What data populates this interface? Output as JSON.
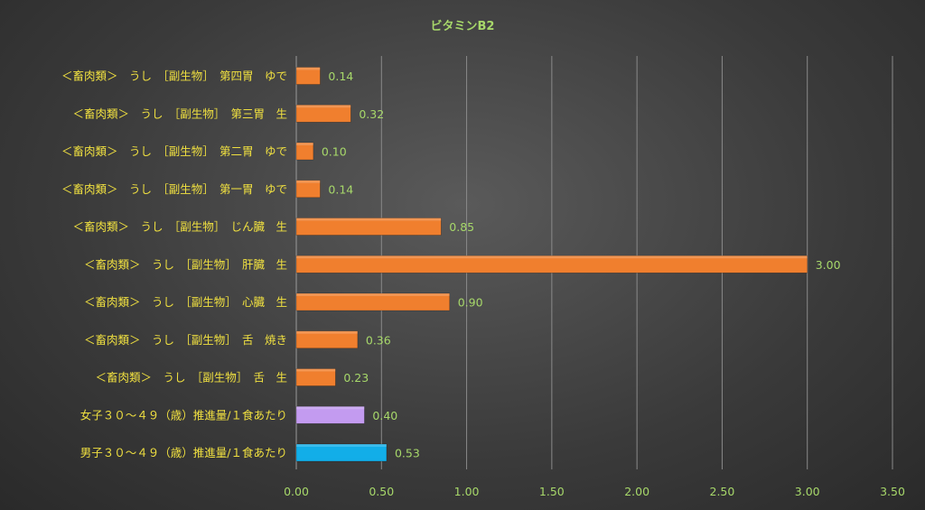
{
  "chart_data": {
    "type": "bar",
    "orientation": "horizontal",
    "title": "ビタミンB2",
    "categories": [
      "＜畜肉類＞　うし　［副生物］　第四胃　ゆで",
      "＜畜肉類＞　うし　［副生物］　第三胃　生",
      "＜畜肉類＞　うし　［副生物］　第二胃　ゆで",
      "＜畜肉類＞　うし　［副生物］　第一胃　ゆで",
      "＜畜肉類＞　うし　［副生物］　じん臓　生",
      "＜畜肉類＞　うし　［副生物］　肝臓　生",
      "＜畜肉類＞　うし　［副生物］　心臓　生",
      "＜畜肉類＞　うし　［副生物］　舌　焼き",
      "＜畜肉類＞　うし　［副生物］　舌　生",
      "女子３０～４９（歳）推進量/１食あたり",
      "男子３０～４９（歳）推進量/１食あたり"
    ],
    "values": [
      0.14,
      0.32,
      0.1,
      0.14,
      0.85,
      3.0,
      0.9,
      0.36,
      0.23,
      0.4,
      0.53
    ],
    "value_labels": [
      "0.14",
      "0.32",
      "0.10",
      "0.14",
      "0.85",
      "3.00",
      "0.90",
      "0.36",
      "0.23",
      "0.40",
      "0.53"
    ],
    "bar_colors": [
      "#f07f2e",
      "#f07f2e",
      "#f07f2e",
      "#f07f2e",
      "#f07f2e",
      "#f07f2e",
      "#f07f2e",
      "#f07f2e",
      "#f07f2e",
      "#c39bf0",
      "#12aee8"
    ],
    "xlim": [
      0,
      3.5
    ],
    "x_ticks": [
      "0.00",
      "0.50",
      "1.00",
      "1.50",
      "2.00",
      "2.50",
      "3.00",
      "3.50"
    ],
    "xlabel": "",
    "ylabel": "",
    "grid": true,
    "legend": false
  }
}
